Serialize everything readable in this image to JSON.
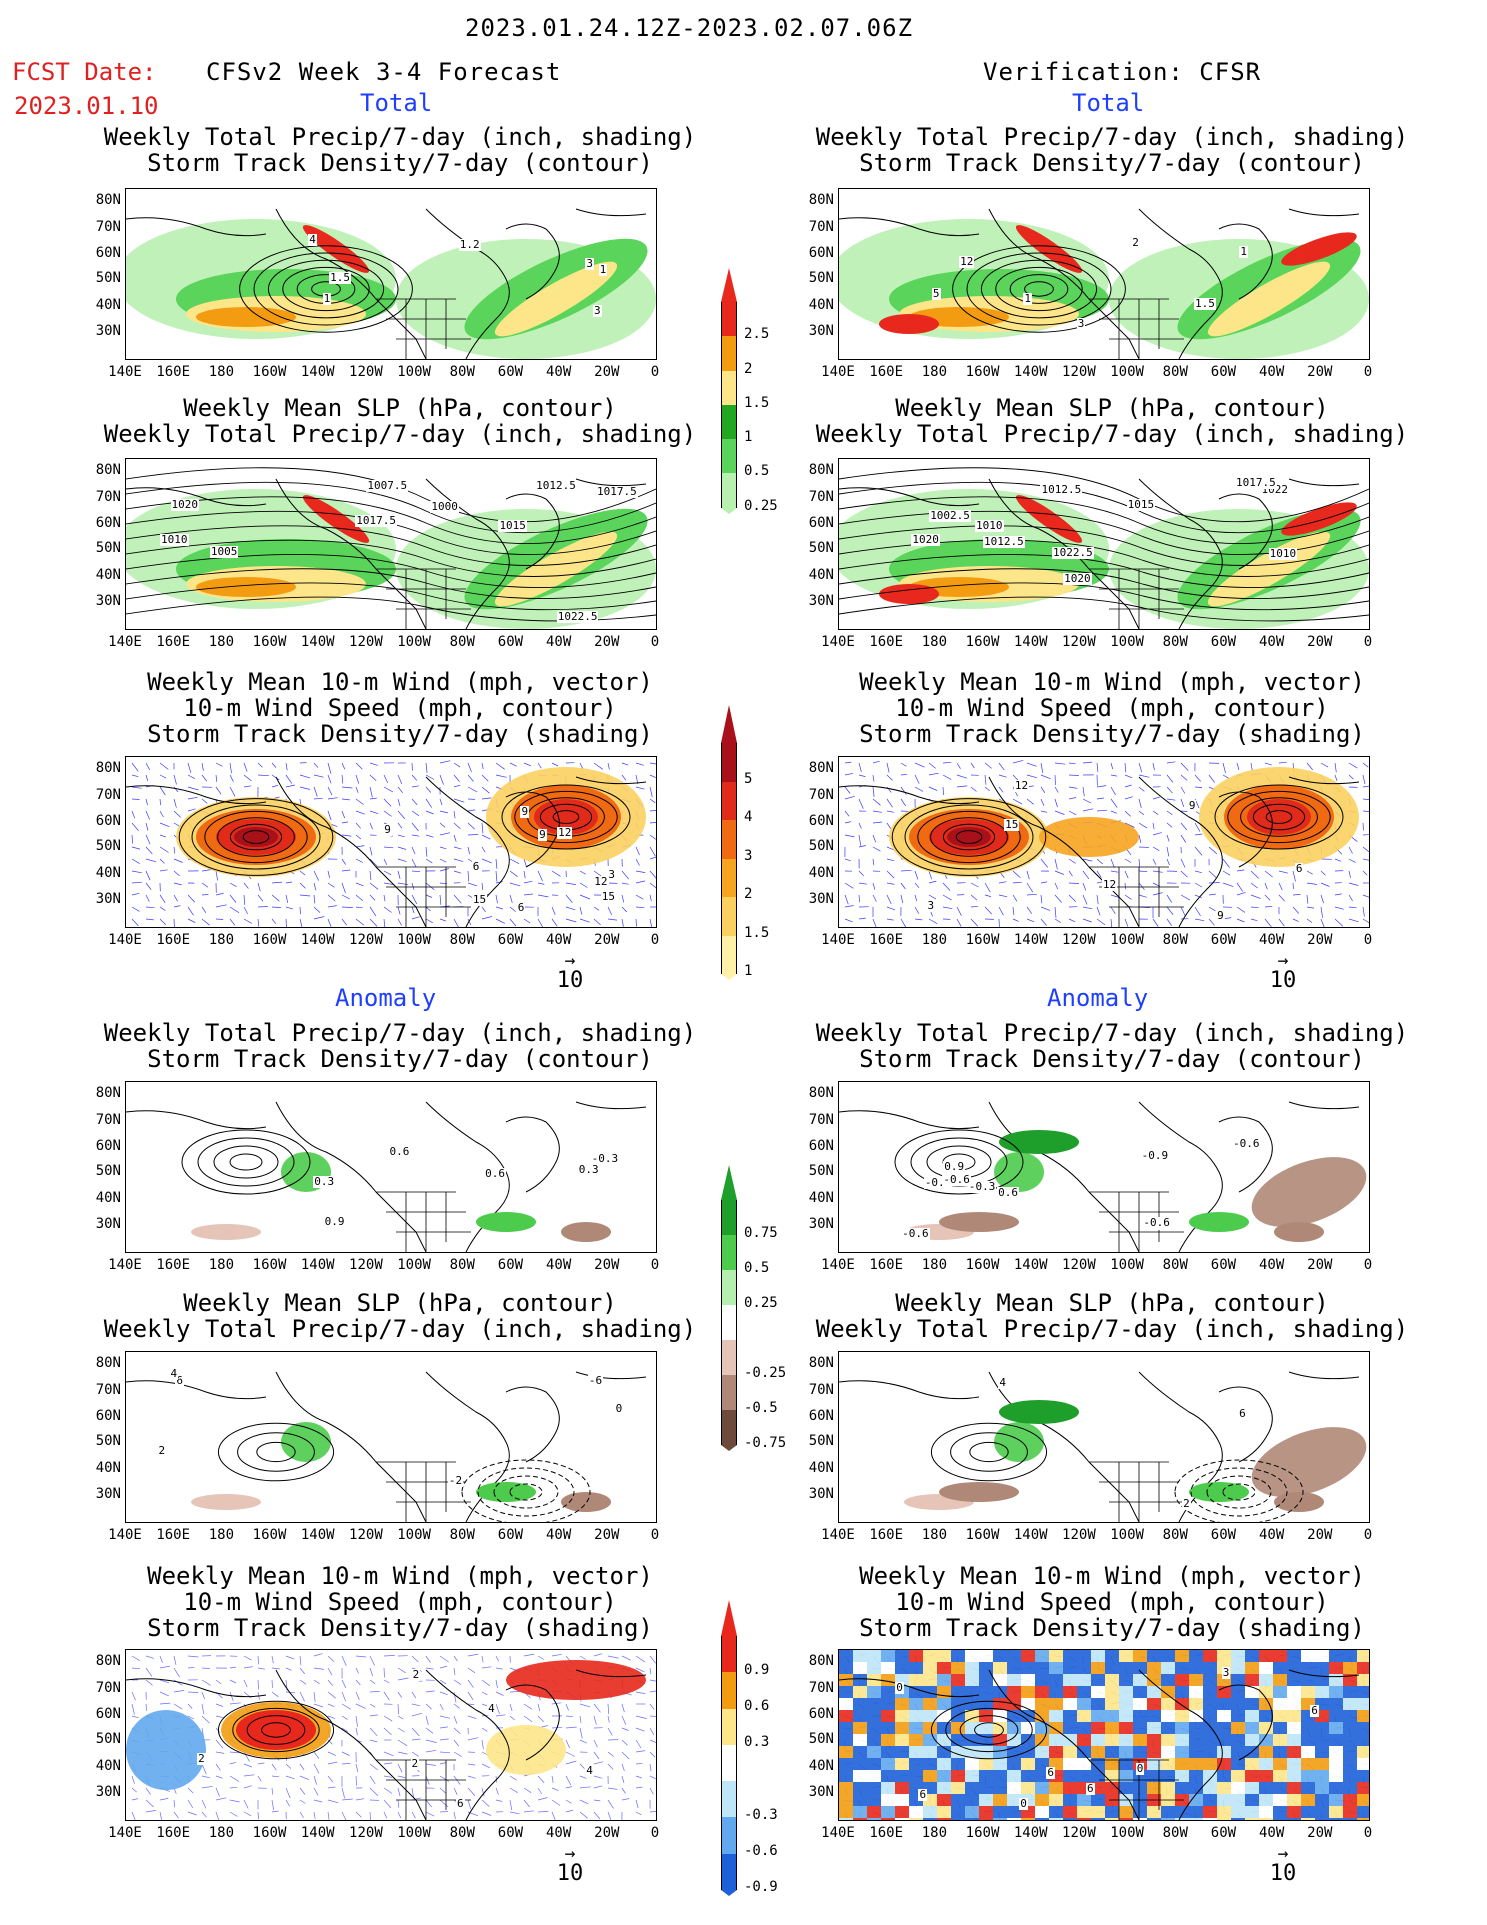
{
  "header": {
    "date_range": "2023.01.24.12Z-2023.02.07.06Z",
    "fcst_label": "FCST Date:",
    "fcst_date": "2023.01.10",
    "left_title": "CFSv2 Week 3-4 Forecast",
    "right_title": "Verification: CFSR"
  },
  "sections": {
    "total": "Total",
    "anomaly": "Anomaly"
  },
  "panel_titles": {
    "precip_storm": [
      "Weekly Total Precip/7-day (inch, shading)",
      "Storm Track Density/7-day (contour)"
    ],
    "slp_precip": [
      "Weekly Mean SLP (hPa, contour)",
      "Weekly Total Precip/7-day (inch, shading)"
    ],
    "wind_storm": [
      "Weekly Mean 10-m Wind (mph, vector)",
      "10-m Wind Speed (mph, contour)",
      "Storm Track Density/7-day (shading)"
    ]
  },
  "axes": {
    "y_ticks": [
      "80N",
      "70N",
      "60N",
      "50N",
      "40N",
      "30N"
    ],
    "x_ticks": [
      "140E",
      "160E",
      "180",
      "160W",
      "140W",
      "120W",
      "100W",
      "80W",
      "60W",
      "40W",
      "20W",
      "0"
    ]
  },
  "vector_ref": "10",
  "colorbars": {
    "precip_total": {
      "labels": [
        "2.5",
        "2",
        "1.5",
        "1",
        "0.5",
        "0.25"
      ],
      "colors": [
        "#e8281c",
        "#f39c12",
        "#fde68a",
        "#22a722",
        "#5ad45a",
        "#b8f0b0"
      ]
    },
    "storm_total": {
      "labels": [
        "5",
        "4",
        "3",
        "2",
        "1.5",
        "1"
      ],
      "colors": [
        "#a8101a",
        "#e02a1a",
        "#f06a14",
        "#f7a420",
        "#fbd060",
        "#fff2a8"
      ]
    },
    "precip_anom": {
      "labels": [
        "0.75",
        "0.5",
        "0.25",
        "-0.25",
        "-0.5",
        "-0.75"
      ],
      "colors": [
        "#1e9e2a",
        "#4ccb4c",
        "#b4efb0",
        "#ffffff",
        "#e6c4b8",
        "#b08878",
        "#6e4a3a"
      ]
    },
    "storm_anom": {
      "labels": [
        "0.9",
        "0.6",
        "0.3",
        "-0.3",
        "-0.6",
        "-0.9"
      ],
      "colors": [
        "#e8281c",
        "#f39c12",
        "#fde68a",
        "#ffffff",
        "#bfe6f7",
        "#62a8ee",
        "#1e60d8"
      ]
    }
  },
  "contour_labels": {
    "p1L": [
      "4",
      "3",
      "1.2",
      "1",
      "1.5",
      "3",
      "1"
    ],
    "p1R": [
      "2",
      "1.5",
      "1",
      "5",
      "12",
      "3",
      "1"
    ],
    "p2L": [
      "1010",
      "1007.5",
      "1015",
      "1017.5",
      "1020",
      "1022.5",
      "1005",
      "1000",
      "1017.5",
      "1012.5"
    ],
    "p2R": [
      "1012.5",
      "1010",
      "1020",
      "1002.5",
      "1022",
      "1012.5",
      "1015",
      "1017.5",
      "1020",
      "1010",
      "1022.5"
    ],
    "p3L": [
      "6",
      "3",
      "9",
      "12",
      "15",
      "9",
      "12",
      "9",
      "15",
      "6"
    ],
    "p3R": [
      "6",
      "9",
      "6",
      "3",
      "12",
      "15",
      "12",
      "9"
    ],
    "p4L": [
      "0.9",
      "0.6",
      "0.3",
      "-0.3",
      "0.3",
      "0.6"
    ],
    "p4R": [
      "0.3",
      "0.6",
      "-0.6",
      "-0.3",
      "0.9",
      "-0.3",
      "-0.6",
      "-0.9",
      "-0.6",
      "-0.6"
    ],
    "p5L": [
      "6",
      "4",
      "2",
      "-6",
      "0",
      "-2"
    ],
    "p5R": [
      "4",
      "6",
      "2"
    ],
    "p6L": [
      "4",
      "2",
      "2",
      "4",
      "6",
      "2"
    ],
    "p6R": [
      "6",
      "0",
      "3",
      "6",
      "6",
      "0",
      "0",
      "6"
    ]
  }
}
